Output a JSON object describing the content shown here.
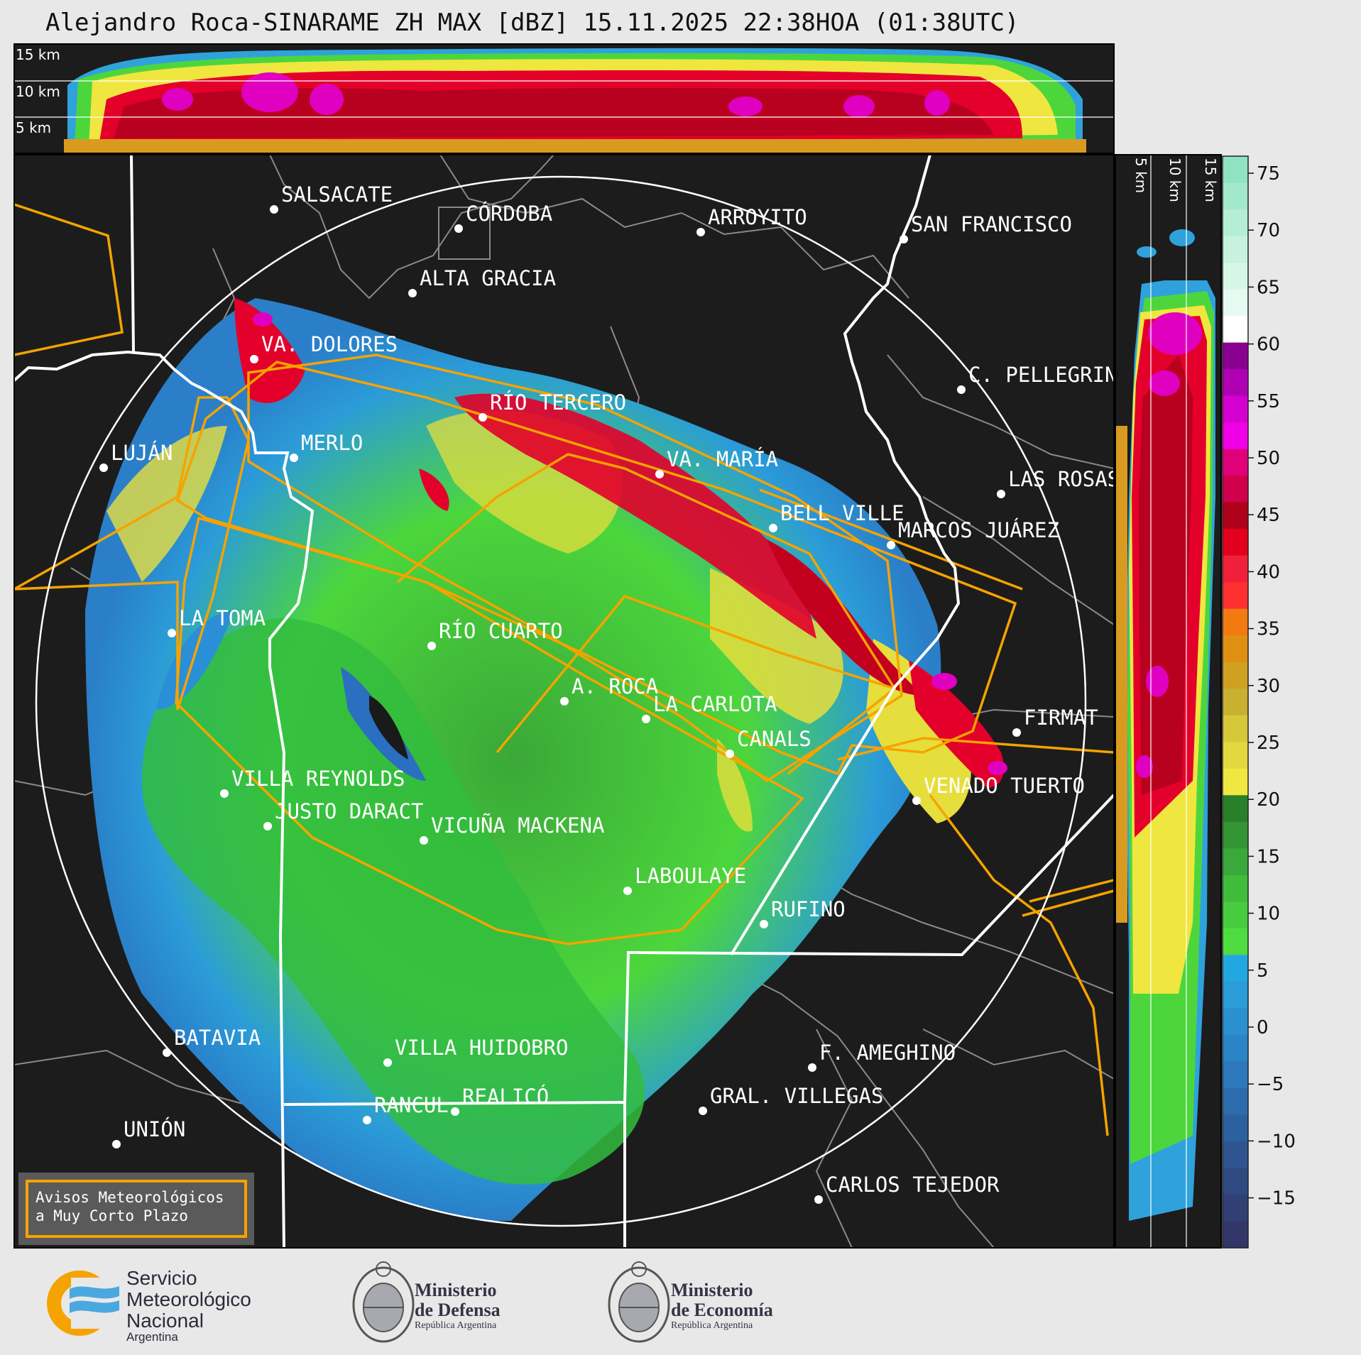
{
  "title": "Alejandro Roca-SINARAME ZH MAX [dBZ] 15.11.2025 22:38HOA (01:38UTC)",
  "height_labels_top": [
    "15 km",
    "10 km",
    "5 km"
  ],
  "height_labels_side": [
    "5 km",
    "10 km",
    "15 km"
  ],
  "colorbar": {
    "ticks": [
      "75",
      "70",
      "65",
      "60",
      "55",
      "50",
      "45",
      "40",
      "35",
      "30",
      "25",
      "20",
      "15",
      "10",
      "5",
      "0",
      "−5",
      "−10",
      "−15"
    ]
  },
  "cities": [
    {
      "name": "SALSACATE"
    },
    {
      "name": "CÓRDOBA"
    },
    {
      "name": "ARROYITO"
    },
    {
      "name": "SAN FRANCISCO"
    },
    {
      "name": "ALTA GRACIA"
    },
    {
      "name": "VA. DOLORES"
    },
    {
      "name": "C. PELLEGRINI"
    },
    {
      "name": "RÍO TERCERO"
    },
    {
      "name": "LUJÁN"
    },
    {
      "name": "MERLO"
    },
    {
      "name": "VA. MARÍA"
    },
    {
      "name": "LAS ROSAS"
    },
    {
      "name": "BELL VILLE"
    },
    {
      "name": "MARCOS JUÁREZ"
    },
    {
      "name": "LA TOMA"
    },
    {
      "name": "RÍO CUARTO"
    },
    {
      "name": "A. ROCA"
    },
    {
      "name": "LA CARLOTA"
    },
    {
      "name": "FIRMAT"
    },
    {
      "name": "CANALS"
    },
    {
      "name": "VILLA REYNOLDS"
    },
    {
      "name": "VENADO TUERTO"
    },
    {
      "name": "JUSTO DARACT"
    },
    {
      "name": "VICUÑA MACKENA"
    },
    {
      "name": "LABOULAYE"
    },
    {
      "name": "RUFINO"
    },
    {
      "name": "BATAVIA"
    },
    {
      "name": "VILLA HUIDOBRO"
    },
    {
      "name": "F. AMEGHINO"
    },
    {
      "name": "RANCUL"
    },
    {
      "name": "REALICÓ"
    },
    {
      "name": "GRAL. VILLEGAS"
    },
    {
      "name": "UNIÓN"
    },
    {
      "name": "CARLOS TEJEDOR"
    }
  ],
  "legend": {
    "line1": "Avisos Meteorológicos",
    "line2": "a Muy Corto Plazo"
  },
  "logos": {
    "smn": {
      "l1": "Servicio",
      "l2": "Meteorológico",
      "l3": "Nacional",
      "l4": "Argentina"
    },
    "defensa": {
      "l1": "Ministerio",
      "l2": "de Defensa",
      "l3": "República Argentina"
    },
    "economia": {
      "l1": "Ministerio",
      "l2": "de Economía",
      "l3": "República Argentina"
    }
  }
}
